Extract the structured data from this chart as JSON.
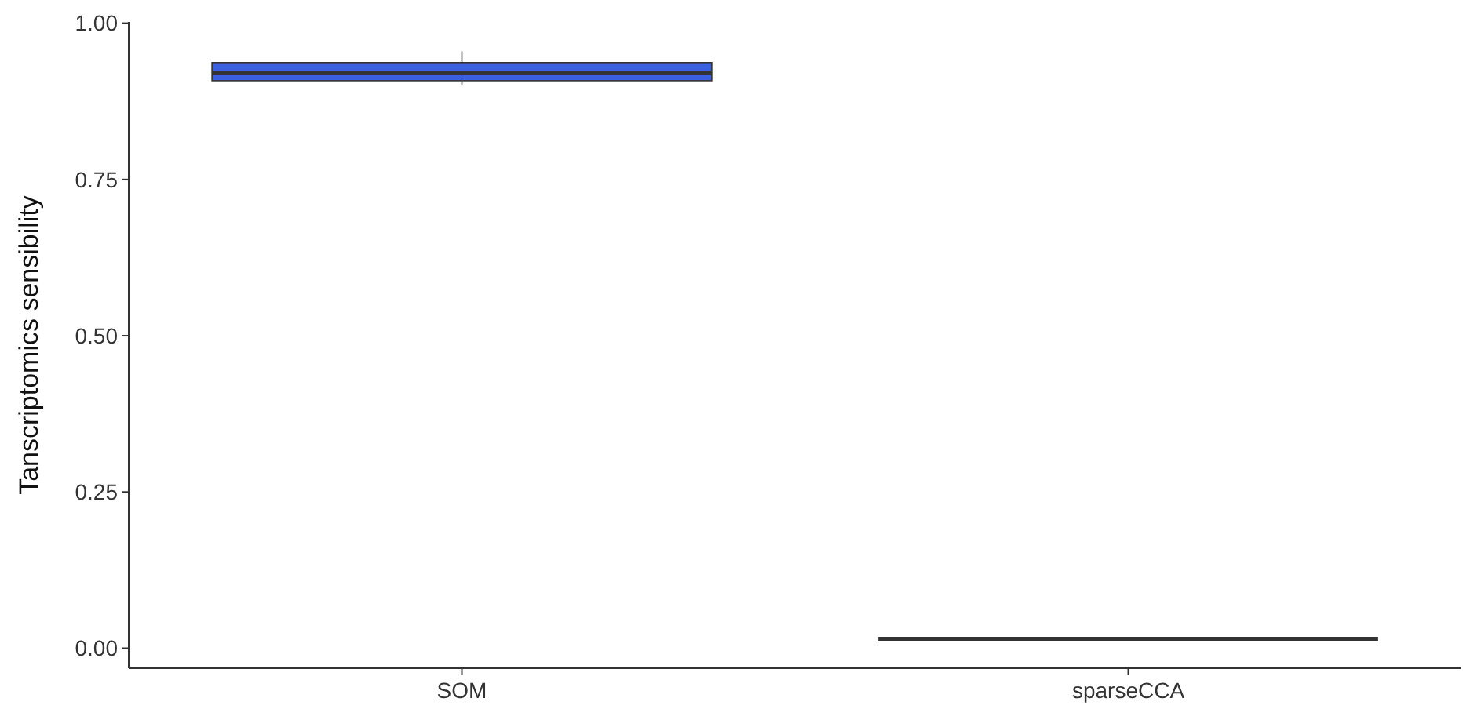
{
  "chart_data": {
    "type": "box",
    "ylabel": "Tanscriptomics sensibility",
    "categories": [
      "SOM",
      "sparseCCA"
    ],
    "ylim": [
      -0.032,
      1.002
    ],
    "yticks": [
      {
        "value": 0,
        "label": "0.00"
      },
      {
        "value": 0.25,
        "label": "0.25"
      },
      {
        "value": 0.5,
        "label": "0.50"
      },
      {
        "value": 0.75,
        "label": "0.75"
      },
      {
        "value": 1,
        "label": "1.00"
      }
    ],
    "colors": [
      "#3a5fe0",
      "#333333"
    ],
    "boxes": [
      {
        "low": 0.9,
        "q1": 0.908,
        "median": 0.921,
        "q3": 0.937,
        "high": 0.955
      },
      {
        "low": 0.015,
        "q1": 0.015,
        "median": 0.015,
        "q3": 0.015,
        "high": 0.015
      }
    ],
    "grid": false
  }
}
